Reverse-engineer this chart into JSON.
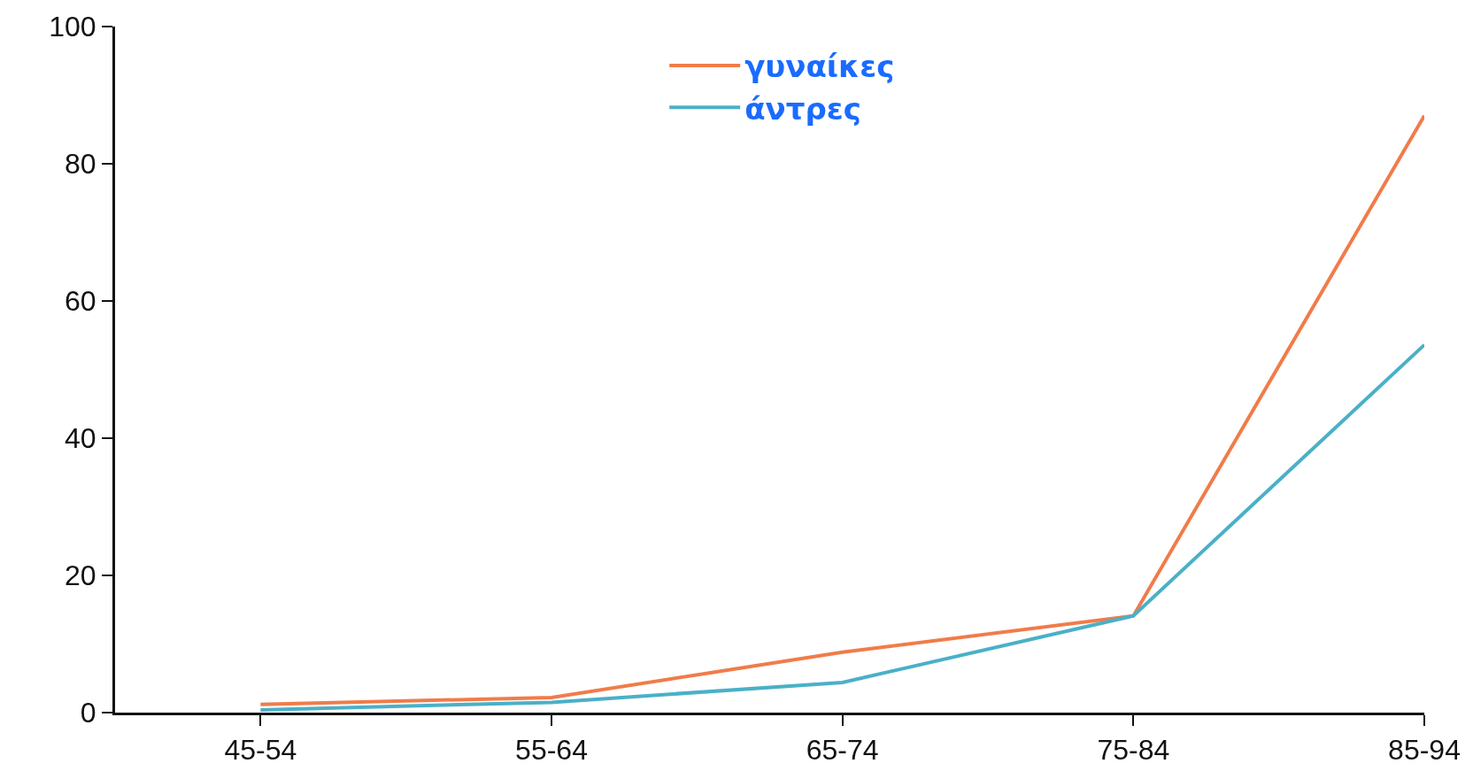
{
  "chart_data": {
    "type": "line",
    "categories": [
      "45-54",
      "55-64",
      "65-74",
      "75-84",
      "85-94"
    ],
    "series": [
      {
        "name": "γυναίκες",
        "color": "#f07c4a",
        "values": [
          1.2,
          2.2,
          8.8,
          14.1,
          87
        ]
      },
      {
        "name": "άντρες",
        "color": "#4ab0c8",
        "values": [
          0.4,
          1.5,
          4.4,
          14.1,
          53.6
        ]
      }
    ],
    "ylim": [
      0,
      100
    ],
    "yticks": [
      0,
      20,
      40,
      60,
      80,
      100
    ],
    "legend": "top",
    "marker": "none",
    "line_style": "solid"
  }
}
